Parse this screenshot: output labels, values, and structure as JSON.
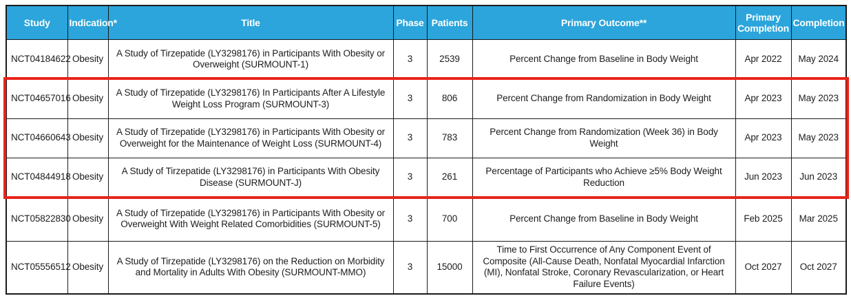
{
  "colors": {
    "header_bg": "#2BA5DB",
    "header_text": "#FFFFFF",
    "grid": "#1A1A1A",
    "highlight_border": "#E8231A"
  },
  "table": {
    "columns": [
      "Study",
      "Indication*",
      "Title",
      "Phase",
      "Patients",
      "Primary Outcome**",
      "Primary Completion",
      "Completion"
    ],
    "rows": [
      {
        "study": "NCT04184622",
        "indication": "Obesity",
        "title": "A Study of Tirzepatide (LY3298176) in Participants With Obesity or Overweight (SURMOUNT-1)",
        "phase": "3",
        "patients": "2539",
        "outcome": "Percent Change from Baseline in Body Weight",
        "primary_completion": "Apr 2022",
        "completion": "May 2024",
        "highlighted": false
      },
      {
        "study": "NCT04657016",
        "indication": "Obesity",
        "title": "A Study of Tirzepatide (LY3298176) In Participants After A Lifestyle Weight Loss Program (SURMOUNT-3)",
        "phase": "3",
        "patients": "806",
        "outcome": "Percent Change from Randomization in Body Weight",
        "primary_completion": "Apr 2023",
        "completion": "May 2023",
        "highlighted": true
      },
      {
        "study": "NCT04660643",
        "indication": "Obesity",
        "title": "A Study of Tirzepatide (LY3298176) in Participants With Obesity or Overweight for the Maintenance of Weight Loss (SURMOUNT-4)",
        "phase": "3",
        "patients": "783",
        "outcome": "Percent Change from Randomization (Week 36) in Body Weight",
        "primary_completion": "Apr 2023",
        "completion": "May 2023",
        "highlighted": true
      },
      {
        "study": "NCT04844918",
        "indication": "Obesity",
        "title": "A Study of Tirzepatide (LY3298176) in Participants With Obesity Disease (SURMOUNT-J)",
        "phase": "3",
        "patients": "261",
        "outcome": "Percentage of Participants who Achieve ≥5% Body Weight Reduction",
        "primary_completion": "Jun 2023",
        "completion": "Jun 2023",
        "highlighted": true
      },
      {
        "study": "NCT05822830",
        "indication": "Obesity",
        "title": "A Study of Tirzepatide (LY3298176) in Participants With Obesity or Overweight With Weight Related Comorbidities (SURMOUNT-5)",
        "phase": "3",
        "patients": "700",
        "outcome": "Percent Change from Baseline in Body Weight",
        "primary_completion": "Feb 2025",
        "completion": "Mar 2025",
        "highlighted": false
      },
      {
        "study": "NCT05556512",
        "indication": "Obesity",
        "title": "A Study of Tirzepatide (LY3298176) on the Reduction on Morbidity and Mortality in Adults With Obesity (SURMOUNT-MMO)",
        "phase": "3",
        "patients": "15000",
        "outcome": "Time to First Occurrence of Any Component Event of Composite (All-Cause Death, Nonfatal Myocardial Infarction (MI), Nonfatal Stroke, Coronary Revascularization, or Heart Failure Events)",
        "primary_completion": "Oct 2027",
        "completion": "Oct 2027",
        "highlighted": false
      }
    ]
  }
}
